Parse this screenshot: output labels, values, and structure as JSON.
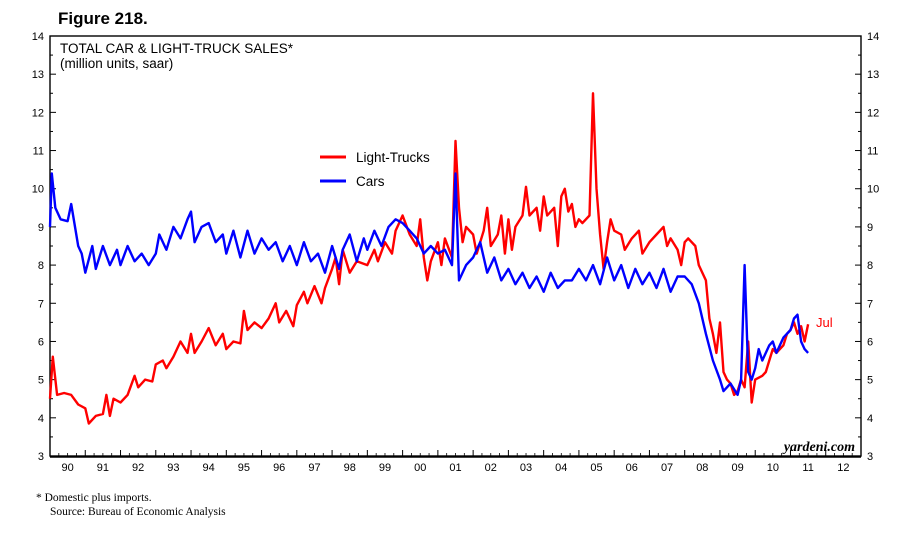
{
  "figure_label": "Figure 218.",
  "footnote": {
    "line1": "*  Domestic plus imports.",
    "line2": "Source: Bureau of Economic Analysis"
  },
  "watermark": "yardeni.com",
  "colors": {
    "light_trucks": "#ff0000",
    "cars": "#0000ff",
    "axis": "#000000"
  },
  "chart_data": {
    "type": "line",
    "title": "TOTAL CAR & LIGHT-TRUCK SALES*",
    "subtitle": "(million units, saar)",
    "ylim": [
      3,
      14
    ],
    "xlim": [
      1990,
      2013
    ],
    "y_ticks": [
      "3",
      "4",
      "5",
      "6",
      "7",
      "8",
      "9",
      "10",
      "11",
      "12",
      "13",
      "14"
    ],
    "x_tick_labels": [
      "90",
      "91",
      "92",
      "93",
      "94",
      "95",
      "96",
      "97",
      "98",
      "99",
      "00",
      "01",
      "02",
      "03",
      "04",
      "05",
      "06",
      "07",
      "08",
      "09",
      "10",
      "11",
      "12"
    ],
    "grid": false,
    "legend_position": "center-left",
    "end_annotation": "Jul",
    "series": [
      {
        "name": "Light-Trucks",
        "color": "#ff0000",
        "points": [
          [
            1990.0,
            4.5
          ],
          [
            1990.08,
            5.6
          ],
          [
            1990.2,
            4.6
          ],
          [
            1990.4,
            4.65
          ],
          [
            1990.6,
            4.6
          ],
          [
            1990.8,
            4.35
          ],
          [
            1991.0,
            4.25
          ],
          [
            1991.1,
            3.85
          ],
          [
            1991.3,
            4.05
          ],
          [
            1991.5,
            4.1
          ],
          [
            1991.6,
            4.6
          ],
          [
            1991.7,
            4.05
          ],
          [
            1991.8,
            4.5
          ],
          [
            1992.0,
            4.4
          ],
          [
            1992.2,
            4.6
          ],
          [
            1992.4,
            5.1
          ],
          [
            1992.5,
            4.8
          ],
          [
            1992.7,
            5.0
          ],
          [
            1992.9,
            4.95
          ],
          [
            1993.0,
            5.4
          ],
          [
            1993.2,
            5.5
          ],
          [
            1993.3,
            5.3
          ],
          [
            1993.5,
            5.6
          ],
          [
            1993.7,
            6.0
          ],
          [
            1993.9,
            5.7
          ],
          [
            1994.0,
            6.2
          ],
          [
            1994.1,
            5.7
          ],
          [
            1994.3,
            6.0
          ],
          [
            1994.5,
            6.35
          ],
          [
            1994.7,
            5.9
          ],
          [
            1994.9,
            6.2
          ],
          [
            1995.0,
            5.8
          ],
          [
            1995.2,
            6.0
          ],
          [
            1995.4,
            5.95
          ],
          [
            1995.5,
            6.8
          ],
          [
            1995.6,
            6.3
          ],
          [
            1995.8,
            6.5
          ],
          [
            1996.0,
            6.35
          ],
          [
            1996.2,
            6.6
          ],
          [
            1996.4,
            7.0
          ],
          [
            1996.5,
            6.5
          ],
          [
            1996.7,
            6.8
          ],
          [
            1996.9,
            6.4
          ],
          [
            1997.0,
            6.95
          ],
          [
            1997.2,
            7.3
          ],
          [
            1997.3,
            7.0
          ],
          [
            1997.5,
            7.45
          ],
          [
            1997.7,
            7.0
          ],
          [
            1997.8,
            7.4
          ],
          [
            1998.0,
            7.9
          ],
          [
            1998.1,
            8.2
          ],
          [
            1998.2,
            7.5
          ],
          [
            1998.3,
            8.4
          ],
          [
            1998.5,
            7.8
          ],
          [
            1998.7,
            8.1
          ],
          [
            1999.0,
            8.0
          ],
          [
            1999.2,
            8.4
          ],
          [
            1999.3,
            8.1
          ],
          [
            1999.5,
            8.6
          ],
          [
            1999.7,
            8.3
          ],
          [
            1999.8,
            8.9
          ],
          [
            2000.0,
            9.3
          ],
          [
            2000.2,
            8.8
          ],
          [
            2000.4,
            8.5
          ],
          [
            2000.5,
            9.2
          ],
          [
            2000.6,
            8.2
          ],
          [
            2000.7,
            7.6
          ],
          [
            2000.8,
            8.1
          ],
          [
            2001.0,
            8.6
          ],
          [
            2001.1,
            8.0
          ],
          [
            2001.2,
            8.7
          ],
          [
            2001.4,
            8.2
          ],
          [
            2001.5,
            11.25
          ],
          [
            2001.6,
            9.5
          ],
          [
            2001.7,
            8.6
          ],
          [
            2001.8,
            9.0
          ],
          [
            2002.0,
            8.8
          ],
          [
            2002.1,
            8.3
          ],
          [
            2002.3,
            8.9
          ],
          [
            2002.4,
            9.5
          ],
          [
            2002.5,
            8.5
          ],
          [
            2002.7,
            8.8
          ],
          [
            2002.8,
            9.3
          ],
          [
            2002.9,
            8.3
          ],
          [
            2003.0,
            9.2
          ],
          [
            2003.1,
            8.4
          ],
          [
            2003.2,
            9.0
          ],
          [
            2003.4,
            9.3
          ],
          [
            2003.5,
            10.05
          ],
          [
            2003.6,
            9.3
          ],
          [
            2003.8,
            9.5
          ],
          [
            2003.9,
            8.9
          ],
          [
            2004.0,
            9.8
          ],
          [
            2004.1,
            9.3
          ],
          [
            2004.3,
            9.5
          ],
          [
            2004.4,
            8.5
          ],
          [
            2004.5,
            9.8
          ],
          [
            2004.6,
            10.0
          ],
          [
            2004.7,
            9.4
          ],
          [
            2004.8,
            9.6
          ],
          [
            2004.9,
            9.0
          ],
          [
            2005.0,
            9.2
          ],
          [
            2005.1,
            9.1
          ],
          [
            2005.3,
            9.3
          ],
          [
            2005.4,
            12.5
          ],
          [
            2005.5,
            10.0
          ],
          [
            2005.6,
            8.8
          ],
          [
            2005.7,
            7.9
          ],
          [
            2005.8,
            8.6
          ],
          [
            2005.9,
            9.2
          ],
          [
            2006.0,
            8.9
          ],
          [
            2006.2,
            8.8
          ],
          [
            2006.3,
            8.4
          ],
          [
            2006.5,
            8.7
          ],
          [
            2006.7,
            8.9
          ],
          [
            2006.8,
            8.3
          ],
          [
            2007.0,
            8.6
          ],
          [
            2007.2,
            8.8
          ],
          [
            2007.4,
            9.0
          ],
          [
            2007.5,
            8.5
          ],
          [
            2007.6,
            8.7
          ],
          [
            2007.8,
            8.4
          ],
          [
            2007.9,
            8.0
          ],
          [
            2008.0,
            8.6
          ],
          [
            2008.1,
            8.7
          ],
          [
            2008.3,
            8.5
          ],
          [
            2008.4,
            8.0
          ],
          [
            2008.6,
            7.6
          ],
          [
            2008.7,
            6.6
          ],
          [
            2008.8,
            6.2
          ],
          [
            2008.9,
            5.7
          ],
          [
            2009.0,
            6.5
          ],
          [
            2009.1,
            5.2
          ],
          [
            2009.2,
            5.0
          ],
          [
            2009.3,
            4.9
          ],
          [
            2009.4,
            4.6
          ],
          [
            2009.5,
            4.7
          ],
          [
            2009.6,
            5.0
          ],
          [
            2009.7,
            4.8
          ],
          [
            2009.8,
            6.0
          ],
          [
            2009.9,
            4.4
          ],
          [
            2010.0,
            5.0
          ],
          [
            2010.2,
            5.1
          ],
          [
            2010.3,
            5.2
          ],
          [
            2010.4,
            5.5
          ],
          [
            2010.5,
            5.8
          ],
          [
            2010.6,
            5.7
          ],
          [
            2010.7,
            5.8
          ],
          [
            2010.8,
            5.9
          ],
          [
            2010.9,
            6.2
          ],
          [
            2011.0,
            6.3
          ],
          [
            2011.1,
            6.5
          ],
          [
            2011.2,
            6.2
          ],
          [
            2011.3,
            6.4
          ],
          [
            2011.4,
            6.0
          ],
          [
            2011.5,
            6.45
          ]
        ]
      },
      {
        "name": "Cars",
        "color": "#0000ff",
        "points": [
          [
            1990.0,
            9.0
          ],
          [
            1990.05,
            10.4
          ],
          [
            1990.15,
            9.5
          ],
          [
            1990.3,
            9.2
          ],
          [
            1990.5,
            9.15
          ],
          [
            1990.6,
            9.6
          ],
          [
            1990.8,
            8.5
          ],
          [
            1990.9,
            8.3
          ],
          [
            1991.0,
            7.8
          ],
          [
            1991.2,
            8.5
          ],
          [
            1991.3,
            7.9
          ],
          [
            1991.5,
            8.5
          ],
          [
            1991.7,
            8.0
          ],
          [
            1991.9,
            8.4
          ],
          [
            1992.0,
            8.0
          ],
          [
            1992.2,
            8.5
          ],
          [
            1992.4,
            8.1
          ],
          [
            1992.6,
            8.3
          ],
          [
            1992.8,
            8.0
          ],
          [
            1993.0,
            8.3
          ],
          [
            1993.1,
            8.8
          ],
          [
            1993.3,
            8.4
          ],
          [
            1993.5,
            9.0
          ],
          [
            1993.7,
            8.7
          ],
          [
            1993.9,
            9.2
          ],
          [
            1994.0,
            9.4
          ],
          [
            1994.1,
            8.6
          ],
          [
            1994.3,
            9.0
          ],
          [
            1994.5,
            9.1
          ],
          [
            1994.7,
            8.6
          ],
          [
            1994.9,
            8.8
          ],
          [
            1995.0,
            8.3
          ],
          [
            1995.2,
            8.9
          ],
          [
            1995.4,
            8.2
          ],
          [
            1995.6,
            8.9
          ],
          [
            1995.8,
            8.3
          ],
          [
            1996.0,
            8.7
          ],
          [
            1996.2,
            8.4
          ],
          [
            1996.4,
            8.6
          ],
          [
            1996.6,
            8.1
          ],
          [
            1996.8,
            8.5
          ],
          [
            1997.0,
            8.0
          ],
          [
            1997.2,
            8.6
          ],
          [
            1997.4,
            8.1
          ],
          [
            1997.6,
            8.3
          ],
          [
            1997.8,
            7.8
          ],
          [
            1998.0,
            8.5
          ],
          [
            1998.2,
            7.9
          ],
          [
            1998.3,
            8.4
          ],
          [
            1998.5,
            8.8
          ],
          [
            1998.7,
            8.1
          ],
          [
            1998.9,
            8.7
          ],
          [
            1999.0,
            8.4
          ],
          [
            1999.2,
            8.9
          ],
          [
            1999.4,
            8.5
          ],
          [
            1999.6,
            9.0
          ],
          [
            1999.8,
            9.2
          ],
          [
            2000.0,
            9.1
          ],
          [
            2000.2,
            8.9
          ],
          [
            2000.4,
            8.7
          ],
          [
            2000.6,
            8.3
          ],
          [
            2000.8,
            8.5
          ],
          [
            2001.0,
            8.3
          ],
          [
            2001.2,
            8.4
          ],
          [
            2001.4,
            8.0
          ],
          [
            2001.5,
            10.4
          ],
          [
            2001.6,
            7.6
          ],
          [
            2001.8,
            8.0
          ],
          [
            2002.0,
            8.2
          ],
          [
            2002.2,
            8.6
          ],
          [
            2002.4,
            7.8
          ],
          [
            2002.6,
            8.2
          ],
          [
            2002.8,
            7.6
          ],
          [
            2003.0,
            7.9
          ],
          [
            2003.2,
            7.5
          ],
          [
            2003.4,
            7.8
          ],
          [
            2003.6,
            7.4
          ],
          [
            2003.8,
            7.7
          ],
          [
            2004.0,
            7.3
          ],
          [
            2004.2,
            7.8
          ],
          [
            2004.4,
            7.4
          ],
          [
            2004.6,
            7.6
          ],
          [
            2004.8,
            7.6
          ],
          [
            2005.0,
            7.9
          ],
          [
            2005.2,
            7.6
          ],
          [
            2005.4,
            8.0
          ],
          [
            2005.6,
            7.5
          ],
          [
            2005.8,
            8.2
          ],
          [
            2006.0,
            7.6
          ],
          [
            2006.2,
            8.0
          ],
          [
            2006.4,
            7.4
          ],
          [
            2006.6,
            7.9
          ],
          [
            2006.8,
            7.5
          ],
          [
            2007.0,
            7.8
          ],
          [
            2007.2,
            7.4
          ],
          [
            2007.4,
            7.9
          ],
          [
            2007.6,
            7.3
          ],
          [
            2007.8,
            7.7
          ],
          [
            2008.0,
            7.7
          ],
          [
            2008.2,
            7.5
          ],
          [
            2008.4,
            7.0
          ],
          [
            2008.6,
            6.2
          ],
          [
            2008.8,
            5.5
          ],
          [
            2009.0,
            5.0
          ],
          [
            2009.1,
            4.7
          ],
          [
            2009.3,
            4.9
          ],
          [
            2009.5,
            4.6
          ],
          [
            2009.6,
            5.0
          ],
          [
            2009.7,
            8.0
          ],
          [
            2009.8,
            5.2
          ],
          [
            2009.9,
            5.0
          ],
          [
            2010.0,
            5.3
          ],
          [
            2010.1,
            5.8
          ],
          [
            2010.2,
            5.5
          ],
          [
            2010.3,
            5.7
          ],
          [
            2010.4,
            5.9
          ],
          [
            2010.5,
            6.0
          ],
          [
            2010.6,
            5.7
          ],
          [
            2010.8,
            6.1
          ],
          [
            2011.0,
            6.3
          ],
          [
            2011.1,
            6.6
          ],
          [
            2011.2,
            6.7
          ],
          [
            2011.3,
            6.0
          ],
          [
            2011.4,
            5.8
          ],
          [
            2011.5,
            5.7
          ]
        ]
      }
    ]
  }
}
